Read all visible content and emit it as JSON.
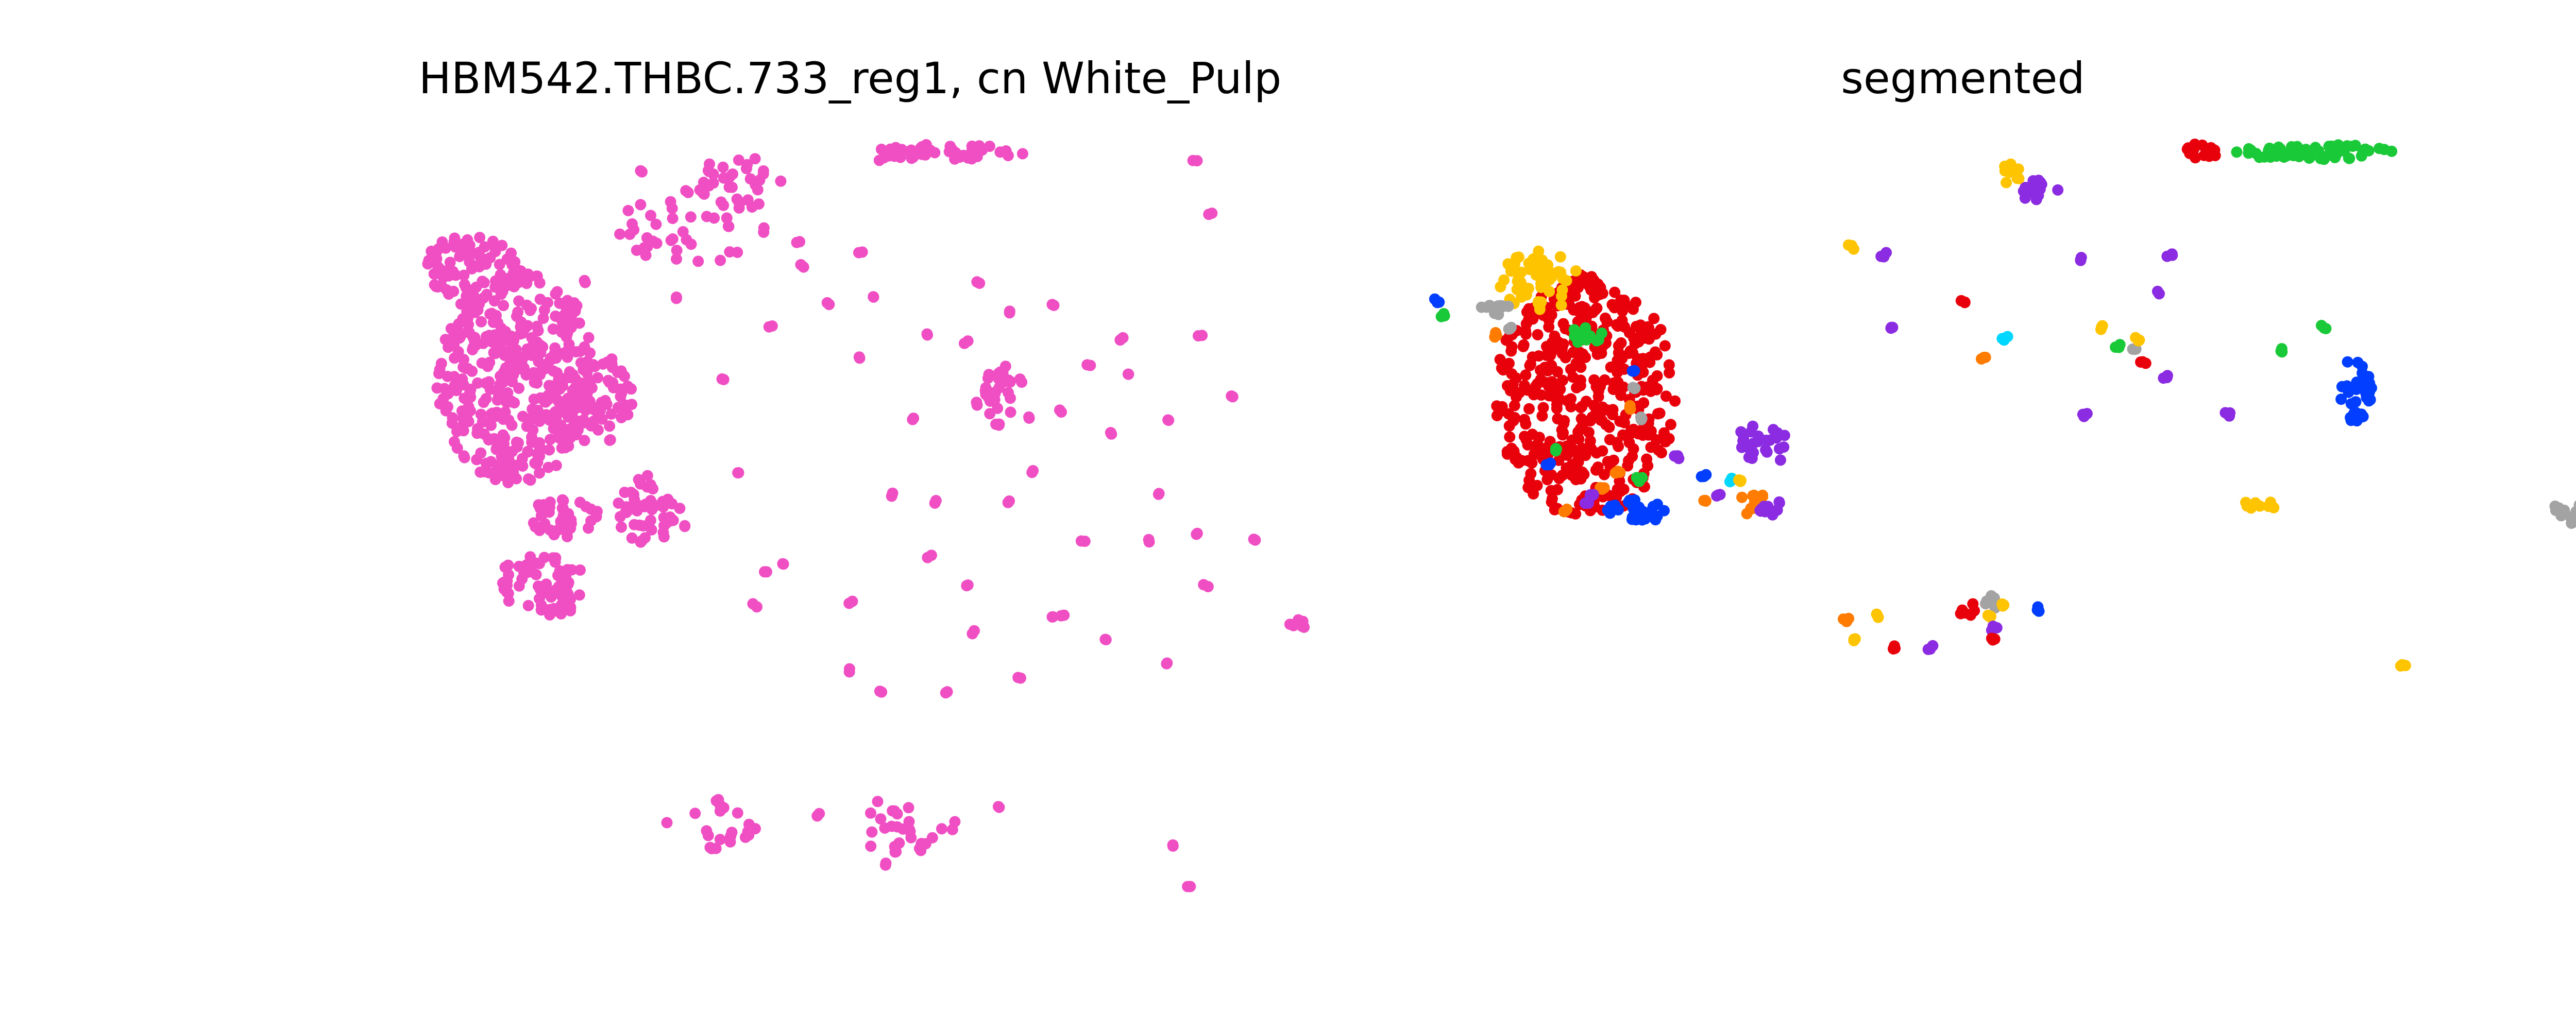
{
  "chart_data": [
    {
      "type": "scatter",
      "title": "HBM542.THBC.733_reg1, cn White_Pulp",
      "xlim": [
        0,
        1000
      ],
      "ylim": [
        0,
        1000
      ],
      "axes_visible": false,
      "point_color": "#f04fc3",
      "clusters": [
        {
          "x": 145,
          "y": 160,
          "rx": 45,
          "ry": 45,
          "n": 70
        },
        {
          "x": 185,
          "y": 305,
          "rx": 75,
          "ry": 140,
          "n": 380
        },
        {
          "x": 255,
          "y": 335,
          "rx": 45,
          "ry": 60,
          "n": 90
        },
        {
          "x": 310,
          "y": 480,
          "rx": 30,
          "ry": 50,
          "n": 50
        },
        {
          "x": 230,
          "y": 490,
          "rx": 35,
          "ry": 25,
          "n": 40
        },
        {
          "x": 210,
          "y": 580,
          "rx": 45,
          "ry": 40,
          "n": 70
        },
        {
          "x": 395,
          "y": 50,
          "rx": 40,
          "ry": 35,
          "n": 35
        },
        {
          "x": 595,
          "y": 10,
          "rx": 70,
          "ry": 10,
          "n": 45
        },
        {
          "x": 350,
          "y": 110,
          "rx": 70,
          "ry": 50,
          "n": 40
        },
        {
          "x": 640,
          "y": 325,
          "rx": 15,
          "ry": 45,
          "n": 30
        },
        {
          "x": 920,
          "y": 630,
          "rx": 10,
          "ry": 10,
          "n": 8
        },
        {
          "x": 545,
          "y": 895,
          "rx": 55,
          "ry": 35,
          "n": 30
        },
        {
          "x": 370,
          "y": 890,
          "rx": 45,
          "ry": 35,
          "n": 20
        }
      ],
      "singles": [
        [
          670,
          360
        ],
        [
          420,
          560
        ],
        [
          230,
          400
        ],
        [
          510,
          280
        ],
        [
          425,
          240
        ],
        [
          540,
          460
        ],
        [
          575,
          540
        ],
        [
          650,
          470
        ],
        [
          500,
          600
        ],
        [
          690,
          620
        ],
        [
          375,
          860
        ],
        [
          470,
          880
        ],
        [
          535,
          945
        ],
        [
          640,
          870
        ],
        [
          805,
          920
        ],
        [
          820,
          975
        ],
        [
          825,
          20
        ],
        [
          840,
          90
        ],
        [
          620,
          180
        ],
        [
          650,
          220
        ],
        [
          520,
          200
        ],
        [
          690,
          210
        ],
        [
          760,
          300
        ],
        [
          700,
          350
        ],
        [
          800,
          360
        ],
        [
          780,
          520
        ],
        [
          880,
          520
        ],
        [
          740,
          650
        ],
        [
          835,
          580
        ],
        [
          610,
          580
        ],
        [
          700,
          620
        ],
        [
          590,
          720
        ],
        [
          530,
          720
        ],
        [
          435,
          550
        ],
        [
          410,
          605
        ],
        [
          500,
          690
        ],
        [
          615,
          640
        ],
        [
          720,
          520
        ],
        [
          580,
          470
        ],
        [
          660,
          310
        ],
        [
          560,
          360
        ],
        [
          480,
          210
        ],
        [
          790,
          460
        ],
        [
          800,
          680
        ],
        [
          745,
          380
        ],
        [
          725,
          290
        ],
        [
          755,
          255
        ],
        [
          195,
          240
        ],
        [
          240,
          210
        ],
        [
          250,
          180
        ],
        [
          450,
          130
        ],
        [
          455,
          160
        ],
        [
          335,
          200
        ],
        [
          530,
          20
        ],
        [
          510,
          140
        ],
        [
          260,
          290
        ],
        [
          305,
          35
        ],
        [
          395,
          430
        ],
        [
          860,
          330
        ],
        [
          830,
          250
        ],
        [
          380,
          310
        ],
        [
          345,
          500
        ],
        [
          620,
          340
        ],
        [
          610,
          260
        ],
        [
          670,
          430
        ],
        [
          575,
          250
        ],
        [
          660,
          700
        ],
        [
          825,
          510
        ]
      ]
    },
    {
      "type": "scatter",
      "title": "segmented",
      "xlim": [
        0,
        1000
      ],
      "ylim": [
        0,
        1000
      ],
      "axes_visible": false,
      "clusters": [
        {
          "color": "#e8000b",
          "x": 145,
          "y": 330,
          "rx": 85,
          "ry": 160,
          "n": 450
        },
        {
          "color": "#ffc400",
          "x": 100,
          "y": 180,
          "rx": 38,
          "ry": 40,
          "n": 55
        },
        {
          "color": "#a3a3a3",
          "x": 60,
          "y": 215,
          "rx": 15,
          "ry": 10,
          "n": 10
        },
        {
          "color": "#1ac938",
          "x": 145,
          "y": 250,
          "rx": 15,
          "ry": 12,
          "n": 12
        },
        {
          "color": "#8b2be2",
          "x": 310,
          "y": 395,
          "rx": 25,
          "ry": 30,
          "n": 25
        },
        {
          "color": "#023eff",
          "x": 195,
          "y": 480,
          "rx": 30,
          "ry": 15,
          "n": 30
        },
        {
          "color": "#ff7c00",
          "x": 305,
          "y": 470,
          "rx": 15,
          "ry": 20,
          "n": 10
        },
        {
          "color": "#8b2be2",
          "x": 315,
          "y": 475,
          "rx": 15,
          "ry": 15,
          "n": 10
        },
        {
          "color": "#1ac938",
          "x": 830,
          "y": 10,
          "rx": 75,
          "ry": 10,
          "n": 60
        },
        {
          "color": "#e8000b",
          "x": 725,
          "y": 10,
          "rx": 15,
          "ry": 12,
          "n": 15
        },
        {
          "color": "#8b2be2",
          "x": 570,
          "y": 60,
          "rx": 20,
          "ry": 15,
          "n": 18
        },
        {
          "color": "#ffc400",
          "x": 545,
          "y": 40,
          "rx": 10,
          "ry": 15,
          "n": 8
        },
        {
          "color": "#023eff",
          "x": 870,
          "y": 320,
          "rx": 15,
          "ry": 45,
          "n": 40
        },
        {
          "color": "#a3a3a3",
          "x": 1070,
          "y": 480,
          "rx": 15,
          "ry": 12,
          "n": 10
        },
        {
          "color": "#e8000b",
          "x": 505,
          "y": 610,
          "rx": 10,
          "ry": 10,
          "n": 6
        },
        {
          "color": "#a3a3a3",
          "x": 528,
          "y": 602,
          "rx": 10,
          "ry": 10,
          "n": 6
        },
        {
          "color": "#ffc400",
          "x": 780,
          "y": 475,
          "rx": 20,
          "ry": 8,
          "n": 8
        }
      ],
      "singles": [
        [
          "#023eff",
          5,
          205
        ],
        [
          "#1ac938",
          10,
          225
        ],
        [
          "#ff7c00",
          60,
          250
        ],
        [
          "#a3a3a3",
          75,
          240
        ],
        [
          "#023eff",
          190,
          295
        ],
        [
          "#a3a3a3",
          190,
          320
        ],
        [
          "#ff7c00",
          185,
          345
        ],
        [
          "#a3a3a3",
          195,
          360
        ],
        [
          "#1ac938",
          115,
          400
        ],
        [
          "#023eff",
          110,
          420
        ],
        [
          "#8b2be2",
          230,
          410
        ],
        [
          "#ff7c00",
          175,
          430
        ],
        [
          "#1ac938",
          195,
          440
        ],
        [
          "#ff7c00",
          160,
          450
        ],
        [
          "#8b2be2",
          150,
          460
        ],
        [
          "#023eff",
          255,
          435
        ],
        [
          "#00d7ff",
          280,
          440
        ],
        [
          "#8b2be2",
          270,
          460
        ],
        [
          "#ff7c00",
          255,
          470
        ],
        [
          "#ff7c00",
          125,
          480
        ],
        [
          "#8b2be2",
          145,
          470
        ],
        [
          "#ffc400",
          290,
          440
        ],
        [
          "#ffc400",
          395,
          135
        ],
        [
          "#8b2be2",
          425,
          145
        ],
        [
          "#8b2be2",
          610,
          150
        ],
        [
          "#8b2be2",
          695,
          145
        ],
        [
          "#8b2be2",
          750,
          355
        ],
        [
          "#e8000b",
          500,
          205
        ],
        [
          "#e8000b",
          670,
          285
        ],
        [
          "#ff7c00",
          520,
          280
        ],
        [
          "#00d7ff",
          540,
          255
        ],
        [
          "#1ac938",
          840,
          240
        ],
        [
          "#8b2be2",
          615,
          355
        ],
        [
          "#a3a3a3",
          660,
          270
        ],
        [
          "#ffc400",
          665,
          255
        ],
        [
          "#8b2be2",
          685,
          195
        ],
        [
          "#8b2be2",
          690,
          305
        ],
        [
          "#ffc400",
          540,
          605
        ],
        [
          "#ffc400",
          525,
          620
        ],
        [
          "#8b2be2",
          530,
          635
        ],
        [
          "#023eff",
          570,
          610
        ],
        [
          "#e8000b",
          530,
          650
        ],
        [
          "#ff7c00",
          390,
          625
        ],
        [
          "#ffc400",
          400,
          650
        ],
        [
          "#ffc400",
          420,
          618
        ],
        [
          "#e8000b",
          435,
          660
        ],
        [
          "#8b2be2",
          470,
          660
        ],
        [
          "#ffc400",
          915,
          685
        ],
        [
          "#1ac938",
          800,
          270
        ],
        [
          "#ffc400",
          630,
          240
        ],
        [
          "#a3a3a3",
          1075,
          495
        ],
        [
          "#8b2be2",
          435,
          240
        ],
        [
          "#1ac938",
          645,
          265
        ]
      ]
    }
  ]
}
